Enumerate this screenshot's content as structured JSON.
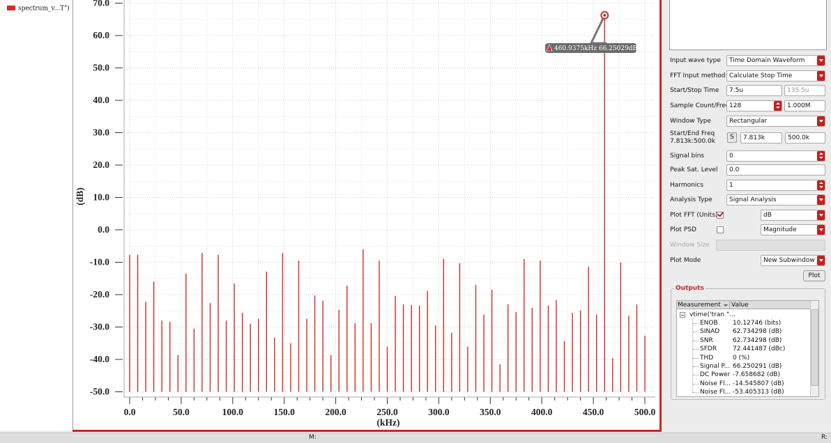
{
  "chart_data": {
    "type": "bar",
    "xlabel": "(kHz)",
    "ylabel": "(dB)",
    "annotation": "460.9375kHz 66.25029dB",
    "xlim": [
      0,
      500
    ],
    "ylim": [
      -50,
      70
    ],
    "xticks": [
      {
        "value": 0,
        "label": "0.0"
      },
      {
        "value": 50,
        "label": "50.0"
      },
      {
        "value": 100,
        "label": "100.0"
      },
      {
        "value": 150,
        "label": "150.0"
      },
      {
        "value": 200,
        "label": "200.0"
      },
      {
        "value": 250,
        "label": "250.0"
      },
      {
        "value": 300,
        "label": "300.0"
      },
      {
        "value": 350,
        "label": "350.0"
      },
      {
        "value": 400,
        "label": "400.0"
      },
      {
        "value": 450,
        "label": "450.0"
      },
      {
        "value": 500,
        "label": "500.0"
      }
    ],
    "yticks": [
      {
        "value": 70,
        "label": "70.0"
      },
      {
        "value": 60,
        "label": "60.0"
      },
      {
        "value": 50,
        "label": "50.0"
      },
      {
        "value": 40,
        "label": "40.0"
      },
      {
        "value": 30,
        "label": "30.0"
      },
      {
        "value": 20,
        "label": "20.0"
      },
      {
        "value": 10,
        "label": "10.0"
      },
      {
        "value": 0,
        "label": "0.0"
      },
      {
        "value": -10,
        "label": "-10.0"
      },
      {
        "value": -20,
        "label": "-20.0"
      },
      {
        "value": -30,
        "label": "-30.0"
      },
      {
        "value": -40,
        "label": "-40.0"
      },
      {
        "value": -50,
        "label": "-50.0"
      }
    ],
    "grid": true,
    "x": [
      0,
      7.8125,
      15.625,
      23.4375,
      31.25,
      39.0625,
      46.875,
      54.6875,
      62.5,
      70.3125,
      78.125,
      85.9375,
      93.75,
      101.5625,
      109.375,
      117.1875,
      125,
      132.8125,
      140.625,
      148.4375,
      156.25,
      164.0625,
      171.875,
      179.6875,
      187.5,
      195.3125,
      203.125,
      210.9375,
      218.75,
      226.5625,
      234.375,
      242.1875,
      250,
      257.8125,
      265.625,
      273.4375,
      281.25,
      289.0625,
      296.875,
      304.6875,
      312.5,
      320.3125,
      328.125,
      335.9375,
      343.75,
      351.5625,
      359.375,
      367.1875,
      375,
      382.8125,
      390.625,
      398.4375,
      406.25,
      414.0625,
      421.875,
      429.6875,
      437.5,
      445.3125,
      453.125,
      460.9375,
      468.75,
      476.5625,
      484.375,
      492.1875,
      500
    ],
    "series": [
      {
        "name": "spectrum_v...T\")",
        "color": "#d42a2a",
        "values": [
          -7.7,
          -7.7,
          -22.2,
          -16,
          -28,
          -28.4,
          -38.7,
          -13.5,
          -30.5,
          -7.1,
          -22.6,
          -7.7,
          -28,
          -16.6,
          -25.6,
          -29,
          -27.5,
          -12.9,
          -33.3,
          -7.1,
          -35,
          -9.5,
          -27.5,
          -20.2,
          -21.9,
          -38.7,
          -24.7,
          -17.2,
          -28.8,
          -6,
          -28.8,
          -9.5,
          -36.1,
          -20.4,
          -23,
          -23.2,
          -23.4,
          -18.9,
          -29.5,
          -9,
          -31.8,
          -10.3,
          -36.1,
          -17,
          -26.2,
          -18.5,
          -41.5,
          -23,
          -25.4,
          -9,
          -24.1,
          -9.5,
          -23.4,
          -21.7,
          -34.4,
          -25.6,
          -24.9,
          -11.4,
          -26.2,
          66.25029,
          -39.6,
          -10.1,
          -26.5,
          -23,
          -32.7
        ]
      }
    ]
  },
  "panel": {
    "fields": [
      {
        "label": "Input wave type",
        "value": "Time Domain Waveform"
      },
      {
        "label": "FFT Input method",
        "value": "Calculate Stop Time"
      },
      {
        "label": "Start/Stop Time",
        "value": "7.5u",
        "value2": "135.5u"
      },
      {
        "label": "Sample Count/Freq",
        "value": "128",
        "value2": "1.000M"
      },
      {
        "label": "Window Type",
        "value": "Rectangular"
      },
      {
        "label": "Start/End Freq",
        "sublabel": "7.813k:500.0k",
        "button": "S",
        "value": "7.813k",
        "value2": "500.0k"
      },
      {
        "label": "Signal bins",
        "value": "0"
      },
      {
        "label": "Peak Sat. Level",
        "value": "0.0"
      },
      {
        "label": "Harmonics",
        "value": "1"
      },
      {
        "label": "Analysis Type",
        "value": "Signal Analysis"
      },
      {
        "label": "Plot FFT (Units)",
        "checked": true,
        "value": "dB"
      },
      {
        "label": "Plot PSD",
        "checked": false,
        "value": "Magnitude"
      },
      {
        "label": "Window Size"
      },
      {
        "label": "Plot Mode",
        "value": "New Subwindow"
      }
    ],
    "plot_button": "Plot",
    "outputs": {
      "title": "Outputs",
      "columns": [
        "Measurement",
        "Value"
      ],
      "root": "vtime('tran \"...",
      "rows": [
        {
          "name": "ENOB",
          "value": "10.12746 (bits)"
        },
        {
          "name": "SINAD",
          "value": "62.734298 (dB)"
        },
        {
          "name": "SNR",
          "value": "62.734298 (dB)"
        },
        {
          "name": "SFDR",
          "value": "72.441487 (dBc)"
        },
        {
          "name": "THD",
          "value": "0 (%)"
        },
        {
          "name": "Signal P...",
          "value": "66.250291 (dB)"
        },
        {
          "name": "DC Power",
          "value": "-7.658682 (dB)"
        },
        {
          "name": "Noise Fl...",
          "value": "-14.545807 (dB)"
        },
        {
          "name": "Noise Fl...",
          "value": "-53.405313 (dB)"
        }
      ]
    }
  },
  "status": {
    "left": "M:",
    "right": "R:"
  }
}
